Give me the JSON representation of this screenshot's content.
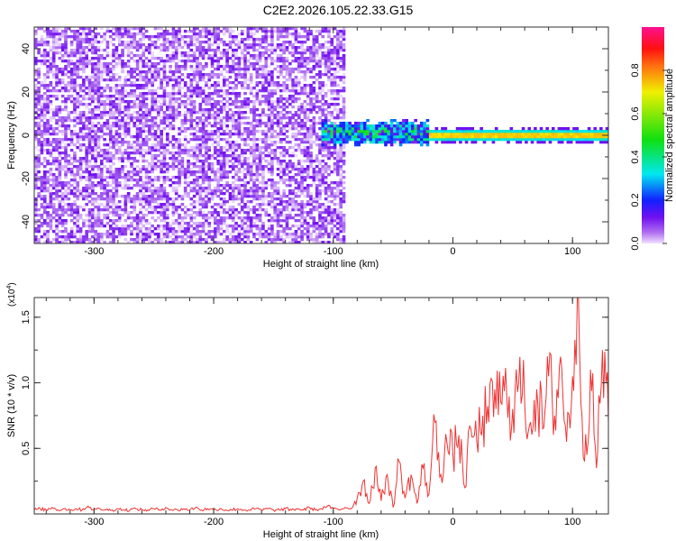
{
  "title": "C2E2.2026.105.22.33.G15",
  "chart_data": [
    {
      "type": "heatmap",
      "title": "C2E2.2026.105.22.33.G15",
      "xlabel": "Height of straight line (km)",
      "ylabel": "Frequency (Hz)",
      "xlim": [
        -350,
        130
      ],
      "ylim": [
        -50,
        50
      ],
      "xticks": [
        -300,
        -200,
        -100,
        0,
        100
      ],
      "xtick_labels": [
        "-300",
        "-200",
        "-100",
        "0",
        "100"
      ],
      "yticks": [
        -40,
        -20,
        0,
        20,
        40
      ],
      "ytick_labels": [
        "-40",
        "-20",
        "0",
        "20",
        "40"
      ],
      "colorbar": {
        "label": "Normalized spectral amplitude",
        "range": [
          0,
          1
        ],
        "ticks": [
          0,
          0.2,
          0.4,
          0.6,
          0.8
        ],
        "tick_labels": [
          "0.0",
          "0.2",
          "0.4",
          "0.6",
          "0.8"
        ]
      },
      "regions": {
        "noise": {
          "x_range": [
            -350,
            -92
          ],
          "freq_range": [
            -50,
            50
          ],
          "amplitude_range": [
            0.0,
            0.12
          ]
        },
        "scattered_signal": {
          "x_range": [
            -112,
            -20
          ],
          "freq_center": 1,
          "freq_spread": 6,
          "amplitude_range": [
            0.1,
            0.6
          ]
        },
        "steady_tone": {
          "x_range": [
            -20,
            130
          ],
          "freq_center": 0,
          "freq_halfwidth": 2,
          "peak_amplitude": 0.95
        }
      }
    },
    {
      "type": "line",
      "xlabel": "Height of straight line (km)",
      "ylabel": "SNR (10 * v/v)",
      "y_multiplier": "(x10",
      "y_multiplier_exp": "4",
      "y_multiplier_close": ")",
      "xlim": [
        -350,
        130
      ],
      "ylim": [
        0,
        1.65
      ],
      "xticks": [
        -300,
        -200,
        -100,
        0,
        100
      ],
      "xtick_labels": [
        "-300",
        "-200",
        "-100",
        "0",
        "100"
      ],
      "yticks": [
        0.5,
        1.0,
        1.5
      ],
      "ytick_labels": [
        "0.5",
        "1.0",
        "1.5"
      ],
      "color": "#ee3333",
      "series": [
        {
          "name": "SNR",
          "x_start": -350,
          "x_step": 5,
          "y": [
            0.03,
            0.04,
            0.03,
            0.05,
            0.03,
            0.04,
            0.03,
            0.04,
            0.03,
            0.06,
            0.03,
            0.04,
            0.03,
            0.03,
            0.04,
            0.03,
            0.03,
            0.04,
            0.03,
            0.03,
            0.04,
            0.03,
            0.05,
            0.03,
            0.03,
            0.04,
            0.03,
            0.05,
            0.03,
            0.04,
            0.03,
            0.04,
            0.03,
            0.03,
            0.04,
            0.03,
            0.03,
            0.04,
            0.03,
            0.04,
            0.03,
            0.03,
            0.04,
            0.03,
            0.04,
            0.03,
            0.05,
            0.03,
            0.04,
            0.06,
            0.04,
            0.03,
            0.05,
            0.04,
            0.12,
            0.25,
            0.08,
            0.35,
            0.1,
            0.3,
            0.05,
            0.4,
            0.12,
            0.3,
            0.08,
            0.35,
            0.15,
            0.7,
            0.3,
            0.55,
            0.45,
            0.6,
            0.2,
            0.65,
            0.55,
            0.75,
            0.7,
            0.95,
            0.85,
            0.9,
            0.8,
            1.0,
            0.85,
            0.7,
            0.95,
            0.65,
            1.05,
            0.75,
            1.2,
            0.55,
            1.05,
            1.65,
            0.4,
            1.1,
            0.35,
            1.25,
            0.7
          ]
        }
      ]
    }
  ]
}
